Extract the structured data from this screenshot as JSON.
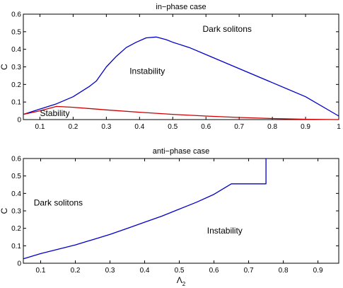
{
  "chart_data": [
    {
      "type": "line",
      "title": "in−phase case",
      "xlabel": "",
      "ylabel": "C",
      "xlim": [
        0.05,
        1
      ],
      "ylim": [
        0,
        0.6
      ],
      "xticks": [
        0.1,
        0.2,
        0.3,
        0.4,
        0.5,
        0.6,
        0.7,
        0.8,
        0.9,
        1
      ],
      "xtick_labels": [
        "0.1",
        "0.2",
        "0.3",
        "0.4",
        "0.5",
        "0.6",
        "0.7",
        "0.8",
        "0.9",
        "1"
      ],
      "yticks": [
        0,
        0.1,
        0.2,
        0.3,
        0.4,
        0.5,
        0.6
      ],
      "ytick_labels": [
        "0",
        "0.1",
        "0.2",
        "0.3",
        "0.4",
        "0.5",
        "0.6"
      ],
      "grid": false,
      "series": [
        {
          "color": "#0000cc",
          "x": [
            0.05,
            0.1,
            0.15,
            0.2,
            0.25,
            0.27,
            0.3,
            0.33,
            0.36,
            0.39,
            0.42,
            0.45,
            0.48,
            0.5,
            0.55,
            0.6,
            0.7,
            0.8,
            0.9,
            1.0
          ],
          "y": [
            0.03,
            0.06,
            0.09,
            0.13,
            0.19,
            0.22,
            0.3,
            0.36,
            0.41,
            0.44,
            0.465,
            0.47,
            0.455,
            0.44,
            0.41,
            0.37,
            0.29,
            0.21,
            0.13,
            0.02
          ]
        },
        {
          "color": "#cc0000",
          "x": [
            0.05,
            0.1,
            0.15,
            0.2,
            0.3,
            0.4,
            0.5,
            0.6,
            0.7,
            0.8,
            0.9,
            1.0
          ],
          "y": [
            0.03,
            0.05,
            0.075,
            0.07,
            0.055,
            0.042,
            0.03,
            0.02,
            0.012,
            0.006,
            0.002,
            0.0
          ]
        }
      ],
      "annotations": [
        {
          "text": "Dark solitons",
          "x": 0.59,
          "y": 0.5
        },
        {
          "text": "Instability",
          "x": 0.37,
          "y": 0.26
        },
        {
          "text": "Stability",
          "x": 0.1,
          "y": 0.02
        }
      ]
    },
    {
      "type": "line",
      "title": "anti−phase case",
      "xlabel": "Λ",
      "xlabel_sub": "2",
      "ylabel": "C",
      "xlim": [
        0.05,
        0.96
      ],
      "ylim": [
        0,
        0.6
      ],
      "xticks": [
        0.1,
        0.2,
        0.3,
        0.4,
        0.5,
        0.6,
        0.7,
        0.8,
        0.9
      ],
      "xtick_labels": [
        "0.1",
        "0.2",
        "0.3",
        "0.4",
        "0.5",
        "0.6",
        "0.7",
        "0.8",
        "0.9"
      ],
      "yticks": [
        0,
        0.1,
        0.2,
        0.3,
        0.4,
        0.5,
        0.6
      ],
      "ytick_labels": [
        "0",
        "0.1",
        "0.2",
        "0.3",
        "0.4",
        "0.5",
        "0.6"
      ],
      "grid": false,
      "series": [
        {
          "color": "#0000cc",
          "x": [
            0.05,
            0.1,
            0.15,
            0.2,
            0.25,
            0.3,
            0.35,
            0.4,
            0.45,
            0.5,
            0.55,
            0.6,
            0.65,
            0.7,
            0.75,
            0.75
          ],
          "y": [
            0.025,
            0.055,
            0.08,
            0.105,
            0.135,
            0.165,
            0.2,
            0.235,
            0.27,
            0.31,
            0.35,
            0.395,
            0.455,
            0.455,
            0.455,
            0.6
          ]
        }
      ],
      "annotations": [
        {
          "text": "Dark solitons",
          "x": 0.08,
          "y": 0.33
        },
        {
          "text": "Instability",
          "x": 0.58,
          "y": 0.17
        }
      ]
    }
  ]
}
